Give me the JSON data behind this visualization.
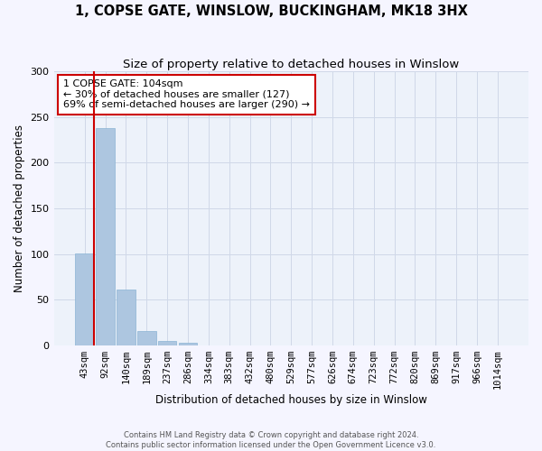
{
  "title": "1, COPSE GATE, WINSLOW, BUCKINGHAM, MK18 3HX",
  "subtitle": "Size of property relative to detached houses in Winslow",
  "xlabel": "Distribution of detached houses by size in Winslow",
  "ylabel": "Number of detached properties",
  "bar_values": [
    101,
    238,
    61,
    16,
    5,
    3,
    0,
    0,
    0,
    0,
    0,
    0,
    0,
    0,
    0,
    0,
    0,
    0,
    0,
    0,
    0
  ],
  "bar_labels": [
    "43sqm",
    "92sqm",
    "140sqm",
    "189sqm",
    "237sqm",
    "286sqm",
    "334sqm",
    "383sqm",
    "432sqm",
    "480sqm",
    "529sqm",
    "577sqm",
    "626sqm",
    "674sqm",
    "723sqm",
    "772sqm",
    "820sqm",
    "869sqm",
    "917sqm",
    "966sqm",
    "1014sqm"
  ],
  "bar_color": "#adc6e0",
  "bar_edge_color": "#8ab4d4",
  "vline_color": "#cc0000",
  "annotation_text": "1 COPSE GATE: 104sqm\n← 30% of detached houses are smaller (127)\n69% of semi-detached houses are larger (290) →",
  "annotation_box_color": "#ffffff",
  "annotation_box_edge": "#cc0000",
  "ylim": [
    0,
    300
  ],
  "yticks": [
    0,
    50,
    100,
    150,
    200,
    250,
    300
  ],
  "grid_color": "#d0d8e8",
  "bg_color": "#edf2fa",
  "fig_bg_color": "#f5f5ff",
  "footer": "Contains HM Land Registry data © Crown copyright and database right 2024.\nContains public sector information licensed under the Open Government Licence v3.0."
}
